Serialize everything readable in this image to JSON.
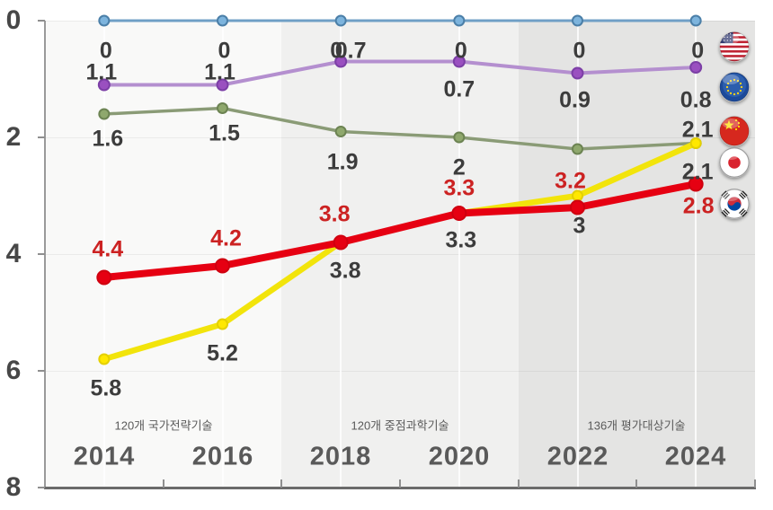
{
  "chart_data": {
    "type": "line",
    "title": "",
    "description_visible_text_only": true,
    "x_categories": [
      "2014",
      "2016",
      "2018",
      "2020",
      "2022",
      "2024"
    ],
    "y_axis": {
      "ticks": [
        "0",
        "2",
        "4",
        "6",
        "8"
      ],
      "range": [
        0,
        8
      ],
      "inverted": true,
      "grid": true
    },
    "period_bands": [
      {
        "label": "120개 국가전략기술",
        "years": [
          "2014",
          "2016"
        ]
      },
      {
        "label": "120개 중점과학기술",
        "years": [
          "2018",
          "2020"
        ]
      },
      {
        "label": "136개 평가대상기술",
        "years": [
          "2022",
          "2024"
        ]
      }
    ],
    "series": [
      {
        "name": "USA",
        "color": "#6f9fc6",
        "label_color": "#3c3c3c",
        "values": [
          0,
          0,
          0,
          0,
          0,
          0
        ],
        "labels": [
          "0",
          "0",
          "0",
          "0",
          "0",
          "0"
        ]
      },
      {
        "name": "EU",
        "color": "#b48fcf",
        "label_color": "#3c3c3c",
        "values": [
          1.1,
          1.1,
          0.7,
          0.7,
          0.9,
          0.8
        ],
        "labels": [
          "1.1",
          "1.1",
          "0.7",
          "0.7",
          "0.9",
          "0.8"
        ]
      },
      {
        "name": "Japan",
        "color": "#8a9b76",
        "label_color": "#3c3c3c",
        "values": [
          1.6,
          1.5,
          1.9,
          2.0,
          2.2,
          2.1
        ],
        "labels": [
          "1.6",
          "1.5",
          "1.9",
          "2",
          "",
          "2.1"
        ]
      },
      {
        "name": "China",
        "color": "#f2e40b",
        "label_color": "#3c3c3c",
        "values": [
          5.8,
          5.2,
          3.8,
          3.3,
          3.0,
          2.1
        ],
        "labels": [
          "5.8",
          "5.2",
          "3.8",
          "3.3",
          "3",
          "2.1"
        ]
      },
      {
        "name": "Korea",
        "color": "#e60012",
        "label_color": "#cc2222",
        "highlight": true,
        "values": [
          4.4,
          4.2,
          3.8,
          3.3,
          3.2,
          2.8
        ],
        "labels": [
          "4.4",
          "4.2",
          "3.8",
          "3.3",
          "3.2",
          "2.8"
        ]
      }
    ],
    "flag_legend": [
      "USA",
      "EU",
      "China",
      "Japan",
      "Korea"
    ]
  }
}
